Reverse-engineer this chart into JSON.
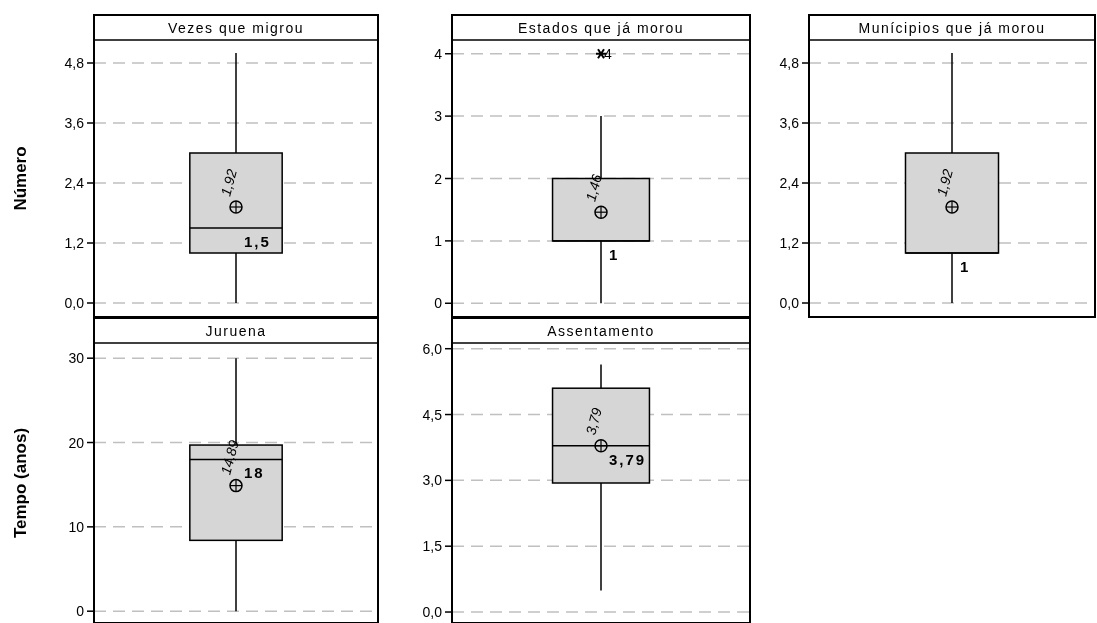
{
  "chart_data": [
    {
      "type": "box",
      "title": "Vezes que migrou",
      "ylabel": "Número",
      "categories": [
        null
      ],
      "boxes": [
        {
          "low": 0,
          "q1": 1,
          "median": 1.5,
          "q3": 3,
          "high": 5,
          "mean": 1.92
        }
      ],
      "ylim": [
        -0.28,
        5.26
      ],
      "yticks": [
        {
          "value": 0,
          "label": "0,0"
        },
        {
          "value": 1.2,
          "label": "1,2"
        },
        {
          "value": 2.4,
          "label": "2,4"
        },
        {
          "value": 3.6,
          "label": "3,6"
        },
        {
          "value": 4.8,
          "label": "4,8"
        }
      ],
      "grid": "y",
      "annotations": [
        "1,92",
        "1,5"
      ]
    },
    {
      "type": "box",
      "title": "Estados que já morou",
      "categories": [
        null
      ],
      "boxes": [
        {
          "low": 0,
          "q1": 1,
          "median": 1,
          "q3": 2,
          "high": 3,
          "mean": 1.46,
          "outliers": [
            4
          ]
        }
      ],
      "ylim": [
        -0.22,
        4.22
      ],
      "yticks": [
        0,
        1,
        2,
        3,
        4
      ],
      "grid": "y",
      "annotations": [
        "1,46",
        "1",
        "4"
      ]
    },
    {
      "type": "box",
      "title": "Munícipios que já morou",
      "categories": [
        null
      ],
      "boxes": [
        {
          "low": 0,
          "q1": 1,
          "median": 1,
          "q3": 3,
          "high": 5,
          "mean": 1.92
        }
      ],
      "ylim": [
        -0.28,
        5.26
      ],
      "yticks": [
        {
          "value": 0,
          "label": "0,0"
        },
        {
          "value": 1.2,
          "label": "1,2"
        },
        {
          "value": 2.4,
          "label": "2,4"
        },
        {
          "value": 3.6,
          "label": "3,6"
        },
        {
          "value": 4.8,
          "label": "4,8"
        }
      ],
      "grid": "y",
      "annotations": [
        "1,92",
        "1"
      ]
    },
    {
      "type": "box",
      "title": "Juruena",
      "ylabel": "Tempo (anos)",
      "categories": [
        null
      ],
      "boxes": [
        {
          "low": 0,
          "q1": 8.4,
          "median": 18,
          "q3": 19.7,
          "high": 30,
          "mean": 14.89
        }
      ],
      "ylim": [
        -1.4,
        31.8
      ],
      "yticks": [
        0,
        10,
        20,
        30
      ],
      "grid": "y",
      "annotations": [
        "14,89",
        "18"
      ]
    },
    {
      "type": "box",
      "title": "Assentamento",
      "categories": [
        null
      ],
      "boxes": [
        {
          "low": 0.49,
          "q1": 2.94,
          "median": 3.79,
          "q3": 5.1,
          "high": 5.64,
          "mean": 3.79
        }
      ],
      "ylim": [
        -0.25,
        6.13
      ],
      "yticks": [
        {
          "value": 0,
          "label": "0,0"
        },
        {
          "value": 1.5,
          "label": "1,5"
        },
        {
          "value": 3,
          "label": "3,0"
        },
        {
          "value": 4.5,
          "label": "4,5"
        },
        {
          "value": 6,
          "label": "6,0"
        }
      ],
      "grid": "y",
      "annotations": [
        "3,79",
        "3,79"
      ]
    }
  ]
}
